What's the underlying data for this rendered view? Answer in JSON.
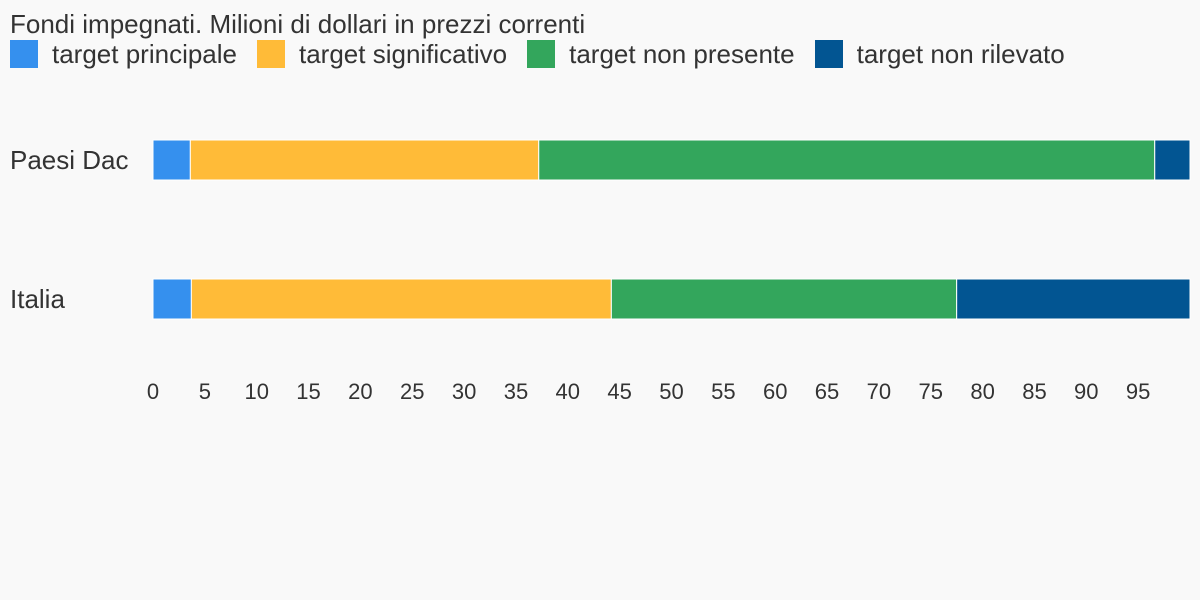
{
  "chart_data": {
    "type": "bar",
    "orientation": "horizontal",
    "stacked": true,
    "title": "Fondi impegnati. Milioni di dollari in prezzi correnti",
    "categories": [
      "Paesi Dac",
      "Italia"
    ],
    "series": [
      {
        "name": "target principale",
        "color": "#3590ee",
        "values": [
          3.6,
          3.7
        ]
      },
      {
        "name": "target significativo",
        "color": "#ffbb38",
        "values": [
          33.6,
          40.5
        ]
      },
      {
        "name": "target non presente",
        "color": "#33a65c",
        "values": [
          59.4,
          33.3
        ]
      },
      {
        "name": "target non rilevato",
        "color": "#025592",
        "values": [
          3.4,
          22.5
        ]
      }
    ],
    "xlim": [
      0,
      100
    ],
    "xticks": [
      "0",
      "5",
      "10",
      "15",
      "20",
      "25",
      "30",
      "35",
      "40",
      "45",
      "50",
      "55",
      "60",
      "65",
      "70",
      "75",
      "80",
      "85",
      "90",
      "95"
    ],
    "legend_position": "top-left",
    "grid": false
  }
}
